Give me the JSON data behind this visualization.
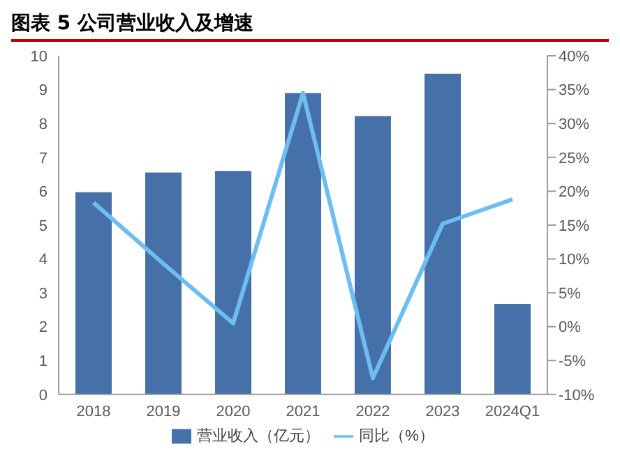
{
  "chart_data": {
    "type": "bar",
    "title": "图表 5 公司营业收入及增速",
    "categories": [
      "2018",
      "2019",
      "2020",
      "2021",
      "2022",
      "2023",
      "2024Q1"
    ],
    "series": [
      {
        "name": "营业收入（亿元）",
        "color": "#4570a8",
        "values": [
          5.97,
          6.55,
          6.6,
          8.9,
          8.22,
          9.47,
          2.67
        ]
      },
      {
        "name": "同比（%）",
        "type": "line",
        "axis": "y2",
        "color": "#6cbdf2",
        "values": [
          18.3,
          9.3,
          0.5,
          34.5,
          -7.6,
          15.2,
          18.8
        ]
      }
    ],
    "ylim": [
      0,
      10
    ],
    "yticks": [
      0,
      1,
      2,
      3,
      4,
      5,
      6,
      7,
      8,
      9,
      10
    ],
    "y2lim": [
      -10,
      40
    ],
    "y2ticks": [
      {
        "value": -10,
        "label": "-10%"
      },
      {
        "value": -5,
        "label": "-5%"
      },
      {
        "value": 0,
        "label": "0%"
      },
      {
        "value": 5,
        "label": "5%"
      },
      {
        "value": 10,
        "label": "10%"
      },
      {
        "value": 15,
        "label": "15%"
      },
      {
        "value": 20,
        "label": "20%"
      },
      {
        "value": 25,
        "label": "25%"
      },
      {
        "value": 30,
        "label": "30%"
      },
      {
        "value": 35,
        "label": "35%"
      },
      {
        "value": 40,
        "label": "40%"
      }
    ],
    "grid": false,
    "legend": "bottom",
    "marker": "none"
  }
}
